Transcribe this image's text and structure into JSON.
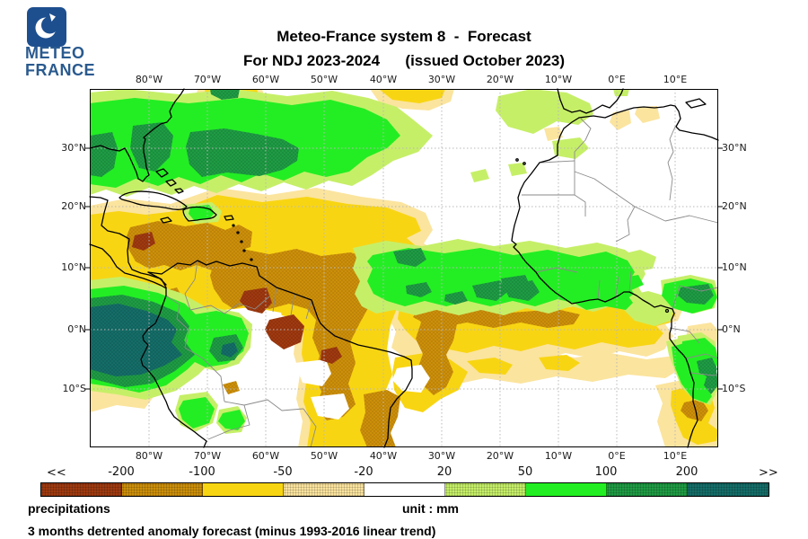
{
  "header": {
    "logo": {
      "line1": "METEO",
      "line2": "FRANCE",
      "brand_color": "#1d4f8f"
    },
    "title_line1": "Meteo-France system 8  -  Forecast",
    "title_line2": "For NDJ 2023-2024      (issued October 2023)"
  },
  "map": {
    "lon_labels": [
      "80°W",
      "70°W",
      "60°W",
      "50°W",
      "40°W",
      "30°W",
      "20°W",
      "10°W",
      "0°E",
      "10°E"
    ],
    "lat_labels": [
      "30°N",
      "20°N",
      "10°N",
      "0°N",
      "10°S"
    ]
  },
  "colorbar": {
    "left_arrow": "<<",
    "right_arrow": ">>",
    "tick_labels": [
      "-200",
      "-100",
      "-50",
      "-20",
      "20",
      "50",
      "100",
      "200"
    ],
    "segment_colors": [
      "#9e3a10",
      "#cc8f0a",
      "#f8d513",
      "#fbe49e",
      "#ffffff",
      "#c6ef68",
      "#23ee23",
      "#1f9b44",
      "#156d68"
    ],
    "stippled_segments": [
      0,
      1,
      3,
      5,
      7,
      8
    ]
  },
  "footer": {
    "variable_label": "precipitations",
    "unit_label": "unit : mm",
    "description": "3 months detrented anomaly forecast (minus 1993-2016 linear trend)"
  }
}
